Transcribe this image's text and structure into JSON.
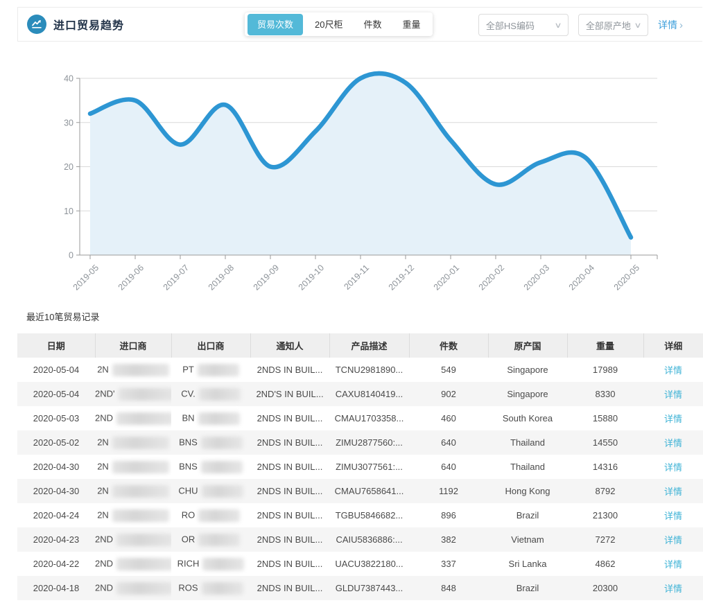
{
  "header": {
    "title": "进口贸易趋势",
    "tabs": [
      {
        "label": "贸易次数",
        "active": true
      },
      {
        "label": "20尺柜",
        "active": false
      },
      {
        "label": "件数",
        "active": false
      },
      {
        "label": "重量",
        "active": false
      }
    ],
    "filters": [
      {
        "label": "全部HS编码"
      },
      {
        "label": "全部原产地"
      }
    ],
    "detail_link": "详情",
    "detail_arrow": "›"
  },
  "colors": {
    "accent_tab": "#53b9d8",
    "icon_circle": "#2b8cbb",
    "line": "#2d96d3",
    "area_fill": "#e5f1f9",
    "grid": "#d9d9d9",
    "axis": "#9a9a9a",
    "axis_label": "#8d9399",
    "link_blue": "#3d9fdb",
    "table_link": "#3fb3d6"
  },
  "chart_data": {
    "type": "area",
    "title": "",
    "xlabel": "",
    "ylabel": "",
    "x": [
      "2019-05",
      "2019-06",
      "2019-07",
      "2019-08",
      "2019-09",
      "2019-10",
      "2019-11",
      "2019-12",
      "2020-01",
      "2020-02",
      "2020-03",
      "2020-04",
      "2020-05"
    ],
    "series": [
      {
        "name": "贸易次数",
        "values": [
          32,
          35,
          25,
          34,
          20,
          28,
          40,
          39,
          26,
          16,
          21,
          22,
          4
        ]
      }
    ],
    "ylim": [
      0,
      40
    ],
    "yticks": [
      0,
      10,
      20,
      30,
      40
    ],
    "grid": true,
    "smooth": true,
    "legend_position": "none"
  },
  "table": {
    "section_title": "最近10笔贸易记录",
    "columns": [
      "日期",
      "进口商",
      "出口商",
      "通知人",
      "产品描述",
      "件数",
      "原产国",
      "重量",
      "详细"
    ],
    "detail_label": "详情",
    "rows": [
      {
        "date": "2020-05-04",
        "importer_prefix": "2N",
        "exporter_prefix": "PT",
        "notify": "2NDS IN BUIL...",
        "product": "TCNU2981890...",
        "qty": "549",
        "origin": "Singapore",
        "weight": "17989"
      },
      {
        "date": "2020-05-04",
        "importer_prefix": "2ND'",
        "exporter_prefix": "CV.",
        "notify": "2ND'S IN BUIL...",
        "product": "CAXU8140419...",
        "qty": "902",
        "origin": "Singapore",
        "weight": "8330"
      },
      {
        "date": "2020-05-03",
        "importer_prefix": "2ND",
        "exporter_prefix": "BN",
        "notify": "2NDS IN BUIL...",
        "product": "CMAU1703358...",
        "qty": "460",
        "origin": "South Korea",
        "weight": "15880"
      },
      {
        "date": "2020-05-02",
        "importer_prefix": "2N",
        "exporter_prefix": "BNS",
        "notify": "2NDS IN BUIL...",
        "product": "ZIMU2877560:...",
        "qty": "640",
        "origin": "Thailand",
        "weight": "14550"
      },
      {
        "date": "2020-04-30",
        "importer_prefix": "2N",
        "exporter_prefix": "BNS",
        "notify": "2NDS IN BUIL...",
        "product": "ZIMU3077561:...",
        "qty": "640",
        "origin": "Thailand",
        "weight": "14316"
      },
      {
        "date": "2020-04-30",
        "importer_prefix": "2N",
        "exporter_prefix": "CHU",
        "notify": "2NDS IN BUIL...",
        "product": "CMAU7658641...",
        "qty": "1192",
        "origin": "Hong Kong",
        "weight": "8792"
      },
      {
        "date": "2020-04-24",
        "importer_prefix": "2N",
        "exporter_prefix": "RO",
        "notify": "2NDS IN BUIL...",
        "product": "TGBU5846682...",
        "qty": "896",
        "origin": "Brazil",
        "weight": "21300"
      },
      {
        "date": "2020-04-23",
        "importer_prefix": "2ND",
        "exporter_prefix": "OR",
        "notify": "2NDS IN BUIL...",
        "product": "CAIU5836886:...",
        "qty": "382",
        "origin": "Vietnam",
        "weight": "7272"
      },
      {
        "date": "2020-04-22",
        "importer_prefix": "2ND",
        "exporter_prefix": "RICH",
        "notify": "2NDS IN BUIL...",
        "product": "UACU3822180...",
        "qty": "337",
        "origin": "Sri Lanka",
        "weight": "4862"
      },
      {
        "date": "2020-04-18",
        "importer_prefix": "2ND",
        "exporter_prefix": "ROS",
        "notify": "2NDS IN BUIL...",
        "product": "GLDU7387443...",
        "qty": "848",
        "origin": "Brazil",
        "weight": "20300"
      }
    ]
  }
}
